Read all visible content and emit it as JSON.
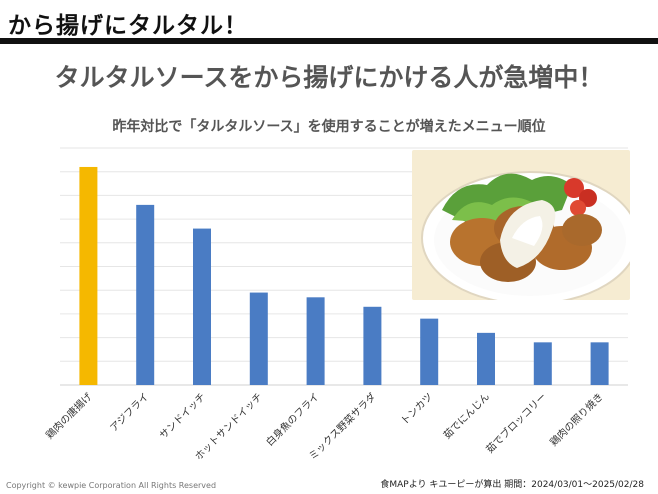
{
  "slide": {
    "title": "から揚げにタルタル！",
    "headline": "タルタルソースをから揚げにかける人が急増中！",
    "subtitle": "昨年対比で「タルタルソース」を使用することが増えたメニュー順位"
  },
  "footer": {
    "copyright": "Copyright © kewpie Corporation All Rights Reserved",
    "source": "食MAPより キユーピーが算出 期間：2024/03/01～2025/02/28"
  },
  "colors": {
    "highlight_bar": "#f5b800",
    "bar": "#4a7cc4",
    "grid": "#e6e6e6"
  },
  "chart_data": {
    "type": "bar",
    "title": "昨年対比で「タルタルソース」を使用することが増えたメニュー順位",
    "xlabel": "",
    "ylabel": "",
    "ylim": [
      0,
      10
    ],
    "grid": true,
    "highlight_index": 0,
    "categories": [
      "鶏肉の唐揚げ",
      "アジフライ",
      "サンドイッチ",
      "ホットサンドイッチ",
      "白身魚のフライ",
      "ミックス野菜サラダ",
      "トンカツ",
      "茹でにんじん",
      "茹でブロッコリー",
      "鶏肉の照り焼き"
    ],
    "values": [
      9.2,
      7.6,
      6.6,
      3.9,
      3.7,
      3.3,
      2.8,
      2.2,
      1.8,
      1.8
    ]
  }
}
